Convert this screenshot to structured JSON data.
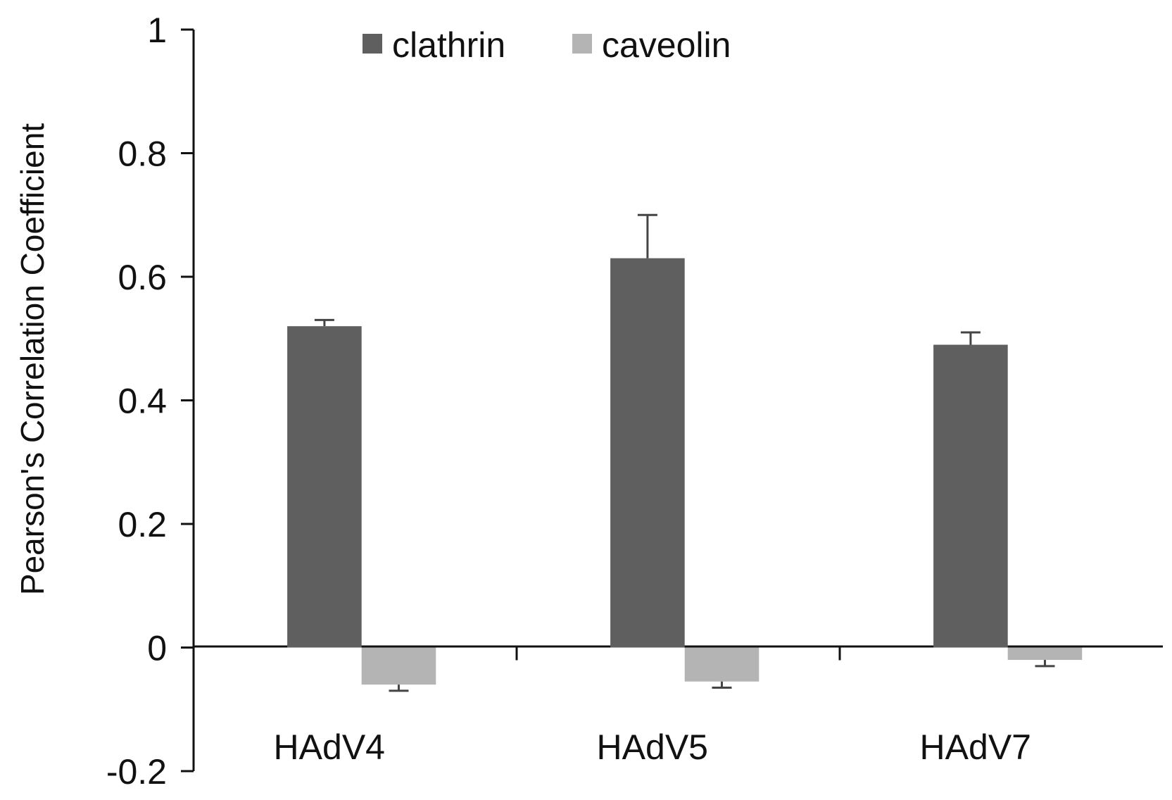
{
  "chart_data": {
    "type": "bar",
    "categories": [
      "HAdV4",
      "HAdV5",
      "HAdV7"
    ],
    "series": [
      {
        "name": "clathrin",
        "values": [
          0.52,
          0.63,
          0.49
        ],
        "errors": [
          0.01,
          0.07,
          0.02
        ],
        "color": "#5f5f5f"
      },
      {
        "name": "caveolin",
        "values": [
          -0.06,
          -0.055,
          -0.02
        ],
        "errors": [
          0.01,
          0.01,
          0.01
        ],
        "color": "#b4b4b4"
      }
    ],
    "title": "",
    "xlabel": "",
    "ylabel": "Pearson's Correlation Coefficient",
    "ylim": [
      -0.2,
      1
    ],
    "yticks": [
      "1",
      "0.8",
      "0.6",
      "0.4",
      "0.2",
      "0",
      "-0.2"
    ],
    "ytick_values": [
      1,
      0.8,
      0.6,
      0.4,
      0.2,
      0,
      -0.2
    ],
    "grid": false,
    "legend_position": "top"
  }
}
